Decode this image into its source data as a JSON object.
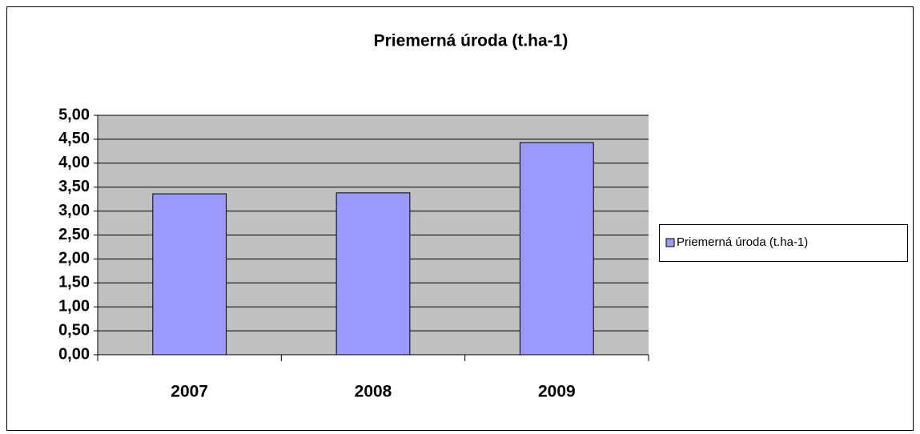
{
  "chart_data": {
    "type": "bar",
    "title": "Priemerná úroda (t.ha-1)",
    "categories": [
      "2007",
      "2008",
      "2009"
    ],
    "series": [
      {
        "name": "Priemerná úroda (t.ha-1)",
        "color": "#9999ff",
        "values": [
          3.36,
          3.38,
          4.43
        ]
      }
    ],
    "ylim": [
      0,
      5
    ],
    "yticks": [
      {
        "value": 0,
        "label": "0,00"
      },
      {
        "value": 0.5,
        "label": "0,50"
      },
      {
        "value": 1,
        "label": "1,00"
      },
      {
        "value": 1.5,
        "label": "1,50"
      },
      {
        "value": 2,
        "label": "2,00"
      },
      {
        "value": 2.5,
        "label": "2,50"
      },
      {
        "value": 3,
        "label": "3,00"
      },
      {
        "value": 3.5,
        "label": "3,50"
      },
      {
        "value": 4,
        "label": "4,00"
      },
      {
        "value": 4.5,
        "label": "4,50"
      },
      {
        "value": 5,
        "label": "5,00"
      }
    ],
    "grid": true,
    "legend": "right"
  }
}
